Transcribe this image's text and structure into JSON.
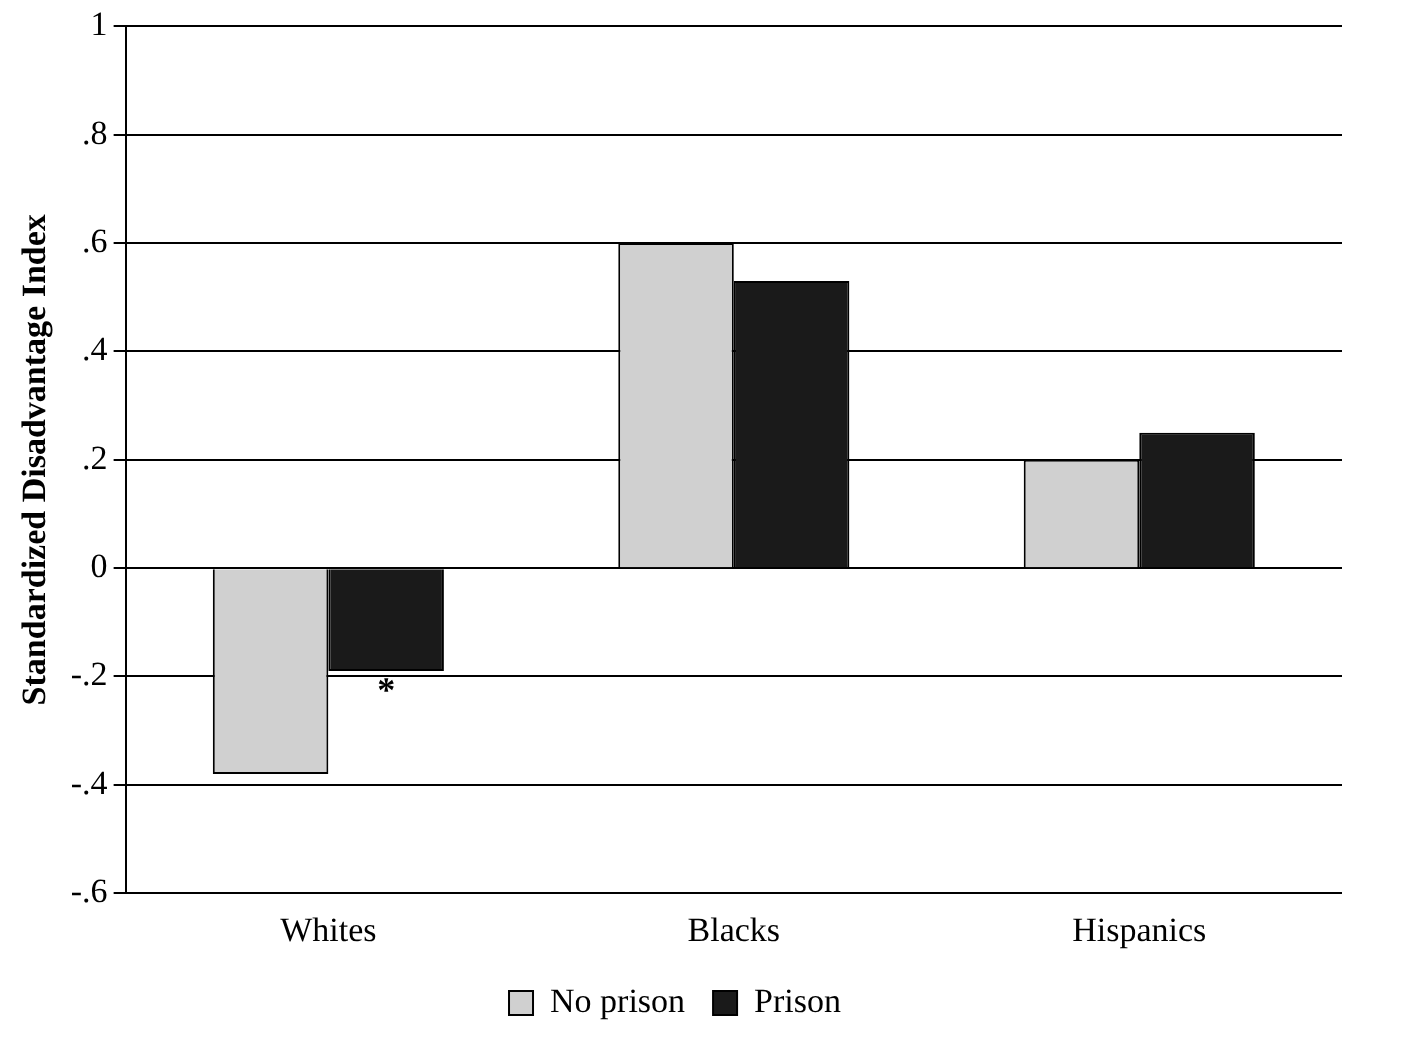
{
  "chart_data": {
    "type": "bar",
    "ylabel": "Standardized Disadvantage Index",
    "categories": [
      "Whites",
      "Blacks",
      "Hispanics"
    ],
    "series": [
      {
        "name": "No prison",
        "color": "#d0d0d0",
        "values": [
          -0.38,
          0.6,
          0.2
        ]
      },
      {
        "name": "Prison",
        "color": "#1a1a1a",
        "values": [
          -0.19,
          0.53,
          0.25
        ]
      }
    ],
    "ylim": [
      -0.6,
      1
    ],
    "yticks": [
      {
        "value": -0.6,
        "label": "-.6"
      },
      {
        "value": -0.4,
        "label": "-.4"
      },
      {
        "value": -0.2,
        "label": "-.2"
      },
      0,
      {
        "value": 0.2,
        "label": ".2"
      },
      {
        "value": 0.4,
        "label": ".4"
      },
      {
        "value": 0.6,
        "label": ".6"
      },
      {
        "value": 0.8,
        "label": ".8"
      },
      1
    ],
    "grid": "y",
    "legend": "bottom",
    "annotations": [
      {
        "text": "*",
        "x": "Whites",
        "y": -0.23
      }
    ]
  }
}
